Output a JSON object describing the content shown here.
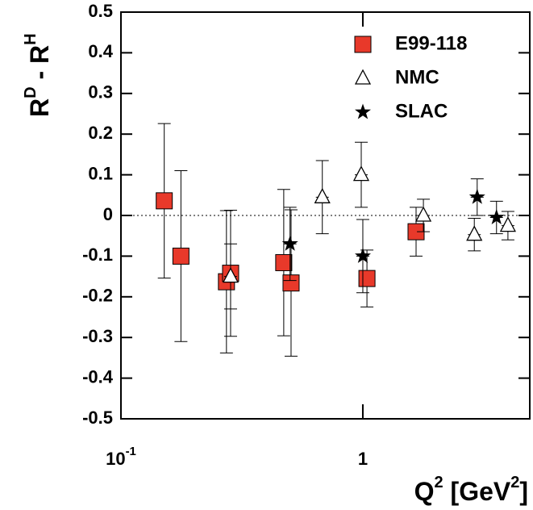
{
  "chart_data": {
    "type": "scatter",
    "log_x": true,
    "xlim": [
      0.1,
      4.9
    ],
    "ylim": [
      -0.5,
      0.5
    ],
    "xticks": [
      {
        "value": 0.1,
        "label": "10",
        "exponent": "-1"
      },
      1
    ],
    "yticks": [
      -0.5,
      -0.4,
      -0.3,
      -0.2,
      -0.1,
      0,
      0.1,
      0.2,
      0.3,
      0.4,
      0.5
    ],
    "zero_line": true,
    "legend": "top-right",
    "y_label": [
      "R",
      "D",
      " - R",
      "H"
    ],
    "x_label": [
      "Q",
      "2",
      " [GeV",
      "2",
      "]"
    ],
    "series": [
      {
        "name": "E99-118",
        "marker": "square",
        "color": "#e8392a",
        "x": [
          0.151,
          0.177,
          0.273,
          0.284,
          0.471,
          0.505,
          1.04,
          1.66
        ],
        "values": [
          0.036,
          -0.1,
          -0.163,
          -0.142,
          -0.116,
          -0.166,
          -0.155,
          -0.04
        ],
        "errors": [
          0.19,
          0.21,
          0.175,
          0.155,
          0.18,
          0.18,
          0.07,
          0.06
        ]
      },
      {
        "name": "NMC",
        "marker": "triangle",
        "color": "#000000",
        "x": [
          0.284,
          0.68,
          0.985,
          1.78,
          2.89,
          3.98
        ],
        "values": [
          -0.15,
          0.045,
          0.1,
          0.0,
          -0.047,
          -0.025
        ],
        "errors": [
          0.08,
          0.09,
          0.08,
          0.04,
          0.04,
          0.035
        ]
      },
      {
        "name": "SLAC",
        "marker": "star",
        "color": "#000000",
        "x": [
          0.5,
          1.0,
          2.97,
          3.57
        ],
        "values": [
          -0.07,
          -0.1,
          0.045,
          -0.005
        ],
        "errors": [
          0.09,
          0.09,
          0.045,
          0.04
        ]
      }
    ]
  }
}
